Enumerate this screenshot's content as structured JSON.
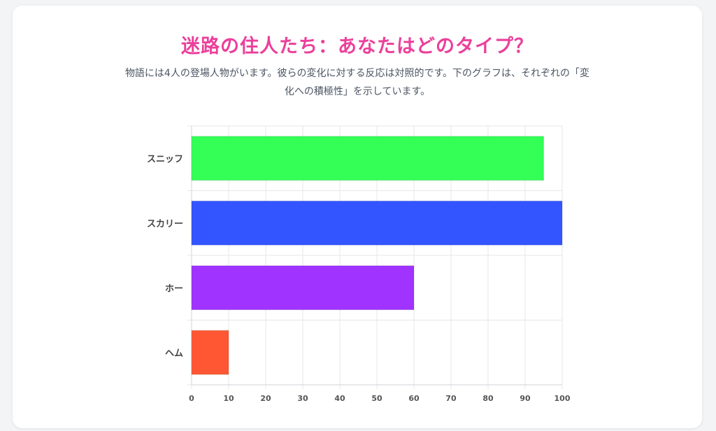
{
  "header": {
    "title": "迷路の住人たち：あなたはどのタイプ？",
    "subtitle_line1": "物語には4人の登場人物がいます。彼らの変化に対する反応は対照的です。下のグラフは、それぞれの「変",
    "subtitle_line2": "化への積極性」を示しています。"
  },
  "chart_data": {
    "type": "bar",
    "orientation": "horizontal",
    "categories": [
      "スニッフ",
      "スカリー",
      "ホー",
      "ヘム"
    ],
    "values": [
      95,
      100,
      60,
      10
    ],
    "colors": [
      "#33ff57",
      "#3355ff",
      "#a033ff",
      "#ff5733"
    ],
    "xlim": [
      0,
      100
    ],
    "xticks": [
      "0",
      "10",
      "20",
      "30",
      "40",
      "50",
      "60",
      "70",
      "80",
      "90",
      "100"
    ],
    "grid": true,
    "legend": "none"
  }
}
